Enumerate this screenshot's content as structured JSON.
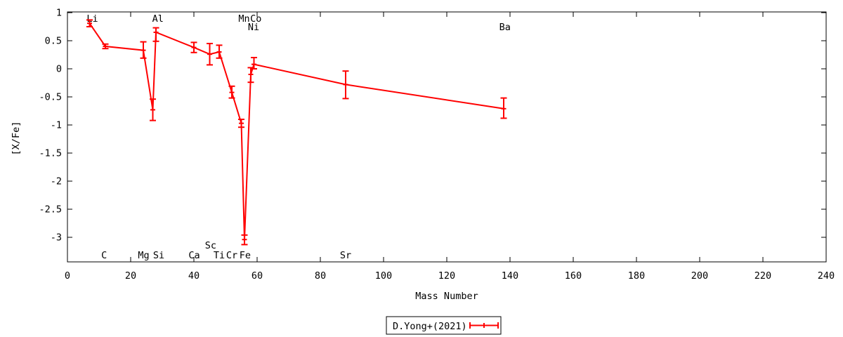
{
  "figure": {
    "background": "#ffffff",
    "accent_color": "#ff0000",
    "text_color": "#000000"
  },
  "chart_data": {
    "type": "line",
    "title": "",
    "xlabel": "Mass Number",
    "ylabel": "[X/Fe]",
    "grid": false,
    "xlim": [
      0,
      240
    ],
    "ylim": [
      -3.44,
      1
    ],
    "x_tick_values": [
      0,
      20,
      40,
      60,
      80,
      100,
      120,
      140,
      160,
      180,
      200,
      220,
      240
    ],
    "x_tick_labels": [
      "0",
      "20",
      "40",
      "60",
      "80",
      "100",
      "120",
      "140",
      "160",
      "180",
      "200",
      "220",
      "240"
    ],
    "y_tick_values": [
      1,
      0.5,
      0,
      -0.5,
      -1,
      -1.5,
      -2,
      -2.5,
      -3
    ],
    "y_tick_labels": [
      "1",
      "0.5",
      "0",
      "-0.5",
      "-1",
      "-1.5",
      "-2",
      "-2.5",
      "-3"
    ],
    "legend": {
      "label": "D.Yong+(2021)",
      "position": "bottom-outside-center",
      "marker": "plus-with-errorbar-line",
      "color": "#ff0000"
    },
    "series": [
      {
        "name": "D.Yong+(2021)",
        "color": "#ff0000",
        "style": "linespoints-yerrorbars",
        "points": [
          {
            "element": "Li",
            "mass": 7,
            "y": 0.81,
            "y_lo": 0.75,
            "y_hi": 0.87
          },
          {
            "element": "C",
            "mass": 12,
            "y": 0.4,
            "y_lo": 0.36,
            "y_hi": 0.44
          },
          {
            "element": "Mg",
            "mass": 24,
            "y": 0.33,
            "y_lo": 0.19,
            "y_hi": 0.48
          },
          {
            "element": "Al",
            "mass": 27,
            "y": -0.73,
            "y_lo": -0.92,
            "y_hi": -0.54
          },
          {
            "element": "Si",
            "mass": 28,
            "y": 0.65,
            "y_lo": 0.49,
            "y_hi": 0.73
          },
          {
            "element": "Ca",
            "mass": 40,
            "y": 0.38,
            "y_lo": 0.29,
            "y_hi": 0.47
          },
          {
            "element": "Sc",
            "mass": 45,
            "y": 0.26,
            "y_lo": 0.07,
            "y_hi": 0.45
          },
          {
            "element": "Ti",
            "mass": 48,
            "y": 0.3,
            "y_lo": 0.19,
            "y_hi": 0.42
          },
          {
            "element": "Cr",
            "mass": 52,
            "y": -0.42,
            "y_lo": -0.52,
            "y_hi": -0.31
          },
          {
            "element": "Mn",
            "mass": 55,
            "y": -0.97,
            "y_lo": -1.04,
            "y_hi": -0.9
          },
          {
            "element": "Fe",
            "mass": 56,
            "y": -3.04,
            "y_lo": -3.13,
            "y_hi": -2.96
          },
          {
            "element": "Ni",
            "mass": 58,
            "y": -0.1,
            "y_lo": -0.24,
            "y_hi": 0.02
          },
          {
            "element": "Co",
            "mass": 59,
            "y": 0.08,
            "y_lo": 0.0,
            "y_hi": 0.2
          },
          {
            "element": "Sr",
            "mass": 88,
            "y": -0.28,
            "y_lo": -0.53,
            "y_hi": -0.04
          },
          {
            "element": "Ba",
            "mass": 138,
            "y": -0.71,
            "y_lo": -0.88,
            "y_hi": -0.52
          }
        ]
      }
    ],
    "element_labels": [
      {
        "text": "Li",
        "x_mass": 7.9,
        "row": "top"
      },
      {
        "text": "Al",
        "x_mass": 28.6,
        "row": "top"
      },
      {
        "text": "Mn",
        "x_mass": 55.9,
        "row": "top"
      },
      {
        "text": "Co",
        "x_mass": 59.6,
        "row": "top"
      },
      {
        "text": "Ni",
        "x_mass": 58.9,
        "row": "top2"
      },
      {
        "text": "Ba",
        "x_mass": 138.4,
        "row": "top2"
      },
      {
        "text": "C",
        "x_mass": 11.6,
        "row": "bottom"
      },
      {
        "text": "Mg",
        "x_mass": 24.1,
        "row": "bottom"
      },
      {
        "text": "Si",
        "x_mass": 28.9,
        "row": "bottom"
      },
      {
        "text": "Ca",
        "x_mass": 40.1,
        "row": "bottom"
      },
      {
        "text": "Sc",
        "x_mass": 45.3,
        "row": "bottom_raised"
      },
      {
        "text": "Ti",
        "x_mass": 48,
        "row": "bottom"
      },
      {
        "text": "Cr",
        "x_mass": 52,
        "row": "bottom"
      },
      {
        "text": "Fe",
        "x_mass": 56.2,
        "row": "bottom"
      },
      {
        "text": "Sr",
        "x_mass": 88,
        "row": "bottom"
      }
    ]
  }
}
